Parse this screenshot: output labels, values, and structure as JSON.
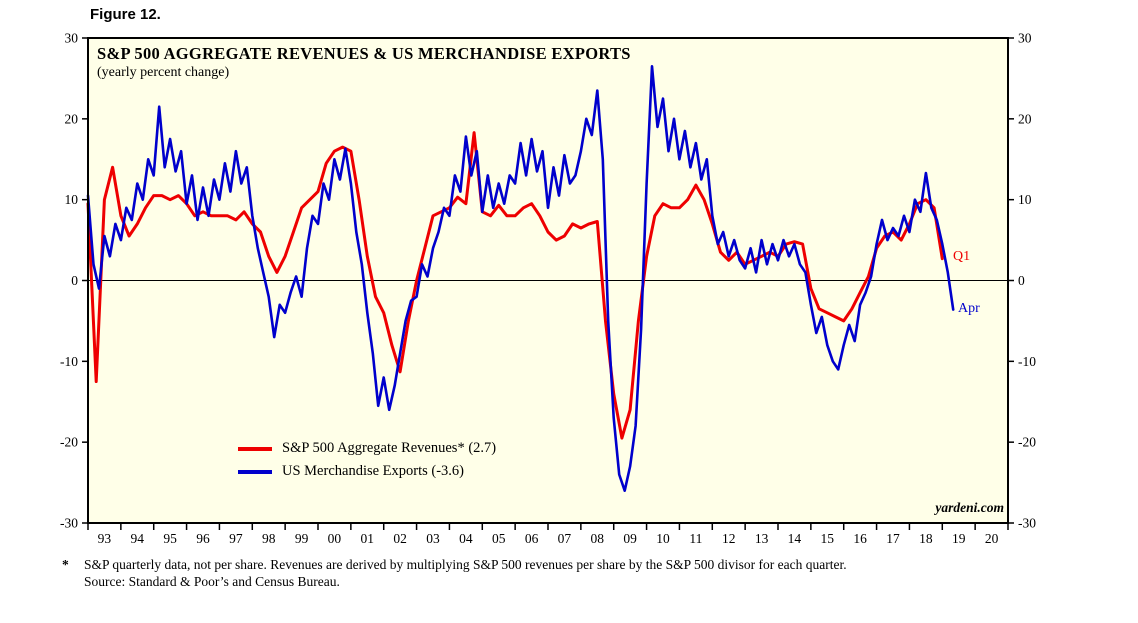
{
  "figure_label": "Figure 12.",
  "credit": "yardeni.com",
  "footnote": {
    "marker": "*",
    "line1": "S&P quarterly data, not per share. Revenues are derived by multiplying S&P 500 revenues per share by the S&P 500 divisor for each quarter.",
    "line2": "Source: Standard & Poor’s and Census Bureau."
  },
  "chart_data": {
    "type": "line",
    "title": "S&P 500 AGGREGATE REVENUES & US MERCHANDISE EXPORTS",
    "subtitle": "(yearly percent change)",
    "ylabel": "yearly percent change",
    "x_range": [
      1993,
      2021
    ],
    "y_range": [
      -30,
      30
    ],
    "y_ticks": [
      -30,
      -20,
      -10,
      0,
      10,
      20,
      30
    ],
    "x_tick_labels": [
      "93",
      "94",
      "95",
      "96",
      "97",
      "98",
      "99",
      "00",
      "01",
      "02",
      "03",
      "04",
      "05",
      "06",
      "07",
      "08",
      "09",
      "10",
      "11",
      "12",
      "13",
      "14",
      "15",
      "16",
      "17",
      "18",
      "19",
      "20"
    ],
    "grid": "off",
    "plot_bg": "#ffffe8",
    "zero_line": true,
    "legend_position": "inside-bottom-left",
    "series": [
      {
        "id": "revenues",
        "name": "S&P 500 Aggregate Revenues",
        "legend_label": "S&P 500 Aggregate Revenues* (2.7)",
        "end_label": "Q1",
        "latest_value": 2.7,
        "color": "#ee0000",
        "x_start": 1993.0,
        "x_step": 0.25,
        "values": [
          9.5,
          -12.5,
          10,
          14,
          8,
          5.5,
          7,
          9,
          10.5,
          10.5,
          10,
          10.5,
          9.5,
          8,
          8.5,
          8,
          8,
          8,
          7.5,
          8.5,
          7,
          6,
          3,
          1,
          3,
          6,
          9,
          10,
          11,
          14.5,
          16,
          16.5,
          16,
          10,
          3,
          -2,
          -4,
          -8,
          -11.3,
          -5,
          0,
          4,
          8,
          8.5,
          9,
          10.3,
          9.5,
          18.3,
          8.5,
          8,
          9.3,
          8,
          8,
          9,
          9.5,
          8,
          6,
          5,
          5.5,
          7,
          6.5,
          7,
          7.3,
          -5,
          -14,
          -19.5,
          -16,
          -5,
          3,
          8,
          9.5,
          9,
          9,
          10,
          11.8,
          10,
          7,
          3.5,
          2.5,
          3.5,
          2,
          2.5,
          3,
          3.5,
          3,
          4.5,
          4.8,
          4.5,
          -1,
          -3.5,
          -4,
          -4.5,
          -5,
          -3.5,
          -1.5,
          0.5,
          4,
          5.5,
          6,
          5,
          7,
          9.5,
          10,
          9,
          2.7
        ]
      },
      {
        "id": "exports",
        "name": "US Merchandise Exports",
        "legend_label": "US Merchandise Exports (-3.6)",
        "end_label": "Apr",
        "latest_value": -3.6,
        "color": "#0000cc",
        "x_start": 1993.0,
        "x_step": 0.1666667,
        "values": [
          10.5,
          2,
          -1,
          5.5,
          3,
          7,
          5,
          9,
          7.5,
          12,
          10,
          15,
          13,
          21.5,
          14,
          17.5,
          13.5,
          16,
          9.5,
          13,
          7.5,
          11.5,
          8,
          12.5,
          10,
          14.5,
          11,
          16,
          12,
          14,
          8,
          4,
          1,
          -2,
          -7,
          -3,
          -4,
          -1.5,
          0.5,
          -2,
          4,
          8,
          7,
          12,
          10,
          15,
          12.5,
          16.3,
          12,
          6,
          2,
          -4,
          -9,
          -15.5,
          -12,
          -16,
          -13,
          -9,
          -5,
          -2.5,
          -2,
          2,
          0.5,
          4,
          6,
          9,
          8,
          13,
          11,
          17.8,
          13,
          16,
          8.5,
          13,
          9,
          12,
          9.5,
          13,
          12,
          17,
          13,
          17.5,
          13.5,
          16,
          9,
          14,
          10.5,
          15.5,
          12,
          13,
          16,
          20,
          18,
          23.5,
          15,
          -5,
          -17,
          -24,
          -26,
          -23,
          -18,
          -6,
          12,
          26.5,
          19,
          22.5,
          16,
          20,
          15,
          18.5,
          14,
          17,
          12.5,
          15,
          8,
          4.5,
          6,
          3,
          5,
          2.5,
          1.5,
          4,
          1,
          5,
          2,
          4.5,
          2.5,
          5,
          3,
          4.5,
          2,
          1,
          -3,
          -6.5,
          -4.5,
          -8,
          -10,
          -11,
          -8,
          -5.5,
          -7.5,
          -3,
          -1.5,
          0.5,
          4.5,
          7.5,
          5,
          6.5,
          5.5,
          8,
          6,
          10,
          8.5,
          13.3,
          9,
          7.5,
          4.5,
          1,
          -3.6
        ]
      }
    ]
  }
}
